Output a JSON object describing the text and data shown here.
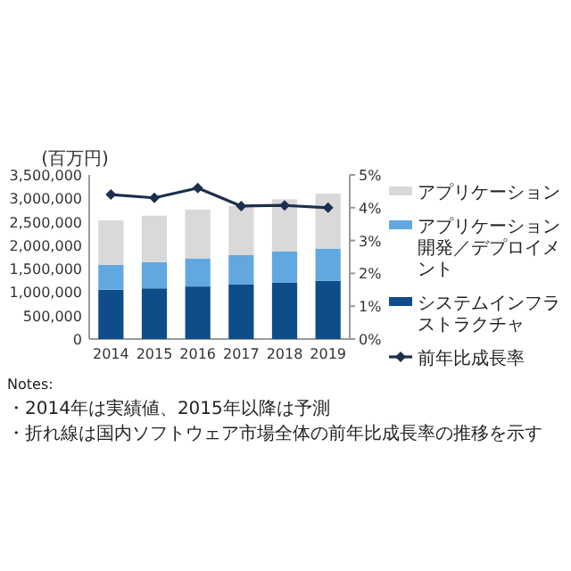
{
  "chart_data": {
    "type": "bar",
    "stacked": true,
    "ylabel": "(百万円)",
    "categories": [
      "2014",
      "2015",
      "2016",
      "2017",
      "2018",
      "2019"
    ],
    "ylim": [
      0,
      3500000
    ],
    "yticks": [
      {
        "value": 0,
        "label": "0"
      },
      {
        "value": 500000,
        "label": "500,000"
      },
      {
        "value": 1000000,
        "label": "1,000,000"
      },
      {
        "value": 1500000,
        "label": "1,500,000"
      },
      {
        "value": 2000000,
        "label": "2,000,000"
      },
      {
        "value": 2500000,
        "label": "2,500,000"
      },
      {
        "value": 3000000,
        "label": "3,000,000"
      },
      {
        "value": 3500000,
        "label": "3,500,000"
      }
    ],
    "y2lim": [
      0,
      5
    ],
    "y2ticks": [
      {
        "value": 0,
        "label": "0%"
      },
      {
        "value": 1,
        "label": "1%"
      },
      {
        "value": 2,
        "label": "2%"
      },
      {
        "value": 3,
        "label": "3%"
      },
      {
        "value": 4,
        "label": "4%"
      },
      {
        "value": 5,
        "label": "5%"
      }
    ],
    "series": [
      {
        "name": "システムインフラストラクチャ",
        "color": "#0f4c8a",
        "values": [
          1050000,
          1080000,
          1120000,
          1160000,
          1200000,
          1240000
        ]
      },
      {
        "name": "アプリケーション開発／デプロイメント",
        "color": "#62a8e0",
        "values": [
          530000,
          560000,
          600000,
          630000,
          670000,
          690000
        ]
      },
      {
        "name": "アプリケーション",
        "color": "#d9d9d9",
        "values": [
          950000,
          990000,
          1040000,
          1050000,
          1110000,
          1170000
        ]
      },
      {
        "name": "前年比成長率",
        "type": "line",
        "axis": "y2",
        "color": "#1b2f4e",
        "marker": "diamond",
        "values": [
          4.4,
          4.3,
          4.6,
          4.05,
          4.07,
          4.0
        ]
      }
    ],
    "legend": "right",
    "annotations": [
      "Notes:",
      "・2014年は実績値、2015年以降は予測",
      "・折れ線は国内ソフトウェア市場全体の前年比成長率の推移を示す"
    ]
  }
}
